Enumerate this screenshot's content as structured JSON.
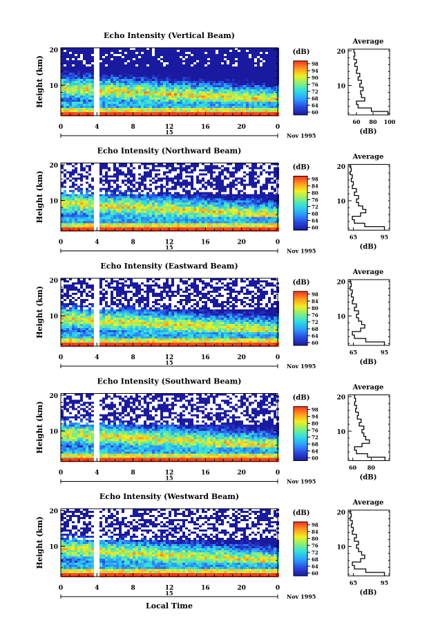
{
  "figure": {
    "xlabel": "Local Time",
    "date_label": "Nov 1995",
    "day_label": "15",
    "avg_title": "Average",
    "unit": "(dB)",
    "ylabel": "Height (km)"
  },
  "chart_data": [
    {
      "type": "heatmap",
      "title": "Echo Intensity (Vertical Beam)",
      "xlabel": "Local Time",
      "ylabel": "Height (km)",
      "x_ticks": [
        "0",
        "4",
        "8",
        "12",
        "16",
        "20",
        "0"
      ],
      "y_ticks": [
        "20",
        "10"
      ],
      "xlim": [
        0,
        24
      ],
      "ylim": [
        1.5,
        20.5
      ],
      "colorbar_label": "(dB)",
      "colorbar_ticks": [
        "98",
        "94",
        "90",
        "76",
        "72",
        "68",
        "64",
        "60"
      ],
      "profile": {
        "xlabel": "(dB)",
        "x_ticks": [
          "60",
          "80",
          "100"
        ],
        "xlim": [
          50,
          100
        ],
        "y_ticks": [
          "20",
          "10"
        ],
        "height_km": [
          2,
          3,
          4,
          5,
          6,
          7,
          8,
          9,
          10,
          11,
          12,
          13,
          14,
          15,
          16,
          17,
          18,
          19,
          20
        ],
        "echo_db": [
          98,
          78,
          62,
          60,
          70,
          66,
          65,
          68,
          64,
          66,
          62,
          64,
          60,
          61,
          58,
          60,
          57,
          58,
          57
        ]
      }
    },
    {
      "type": "heatmap",
      "title": "Echo Intensity (Northward Beam)",
      "xlabel": "Local Time",
      "ylabel": "Height (km)",
      "x_ticks": [
        "0",
        "4",
        "8",
        "12",
        "16",
        "20",
        "0"
      ],
      "y_ticks": [
        "20",
        "10"
      ],
      "xlim": [
        0,
        24
      ],
      "ylim": [
        1.5,
        20.5
      ],
      "colorbar_label": "(dB)",
      "colorbar_ticks": [
        "98",
        "84",
        "80",
        "76",
        "72",
        "68",
        "64",
        "60"
      ],
      "profile": {
        "xlabel": "(dB)",
        "x_ticks": [
          "65",
          "95"
        ],
        "xlim": [
          60,
          100
        ],
        "y_ticks": [
          "20",
          "10"
        ],
        "height_km": [
          2,
          3,
          4,
          5,
          6,
          7,
          8,
          9,
          10,
          11,
          12,
          13,
          14,
          15,
          16,
          17,
          18,
          19,
          20
        ],
        "echo_db": [
          95,
          76,
          66,
          64,
          72,
          77,
          74,
          70,
          68,
          70,
          66,
          68,
          64,
          65,
          63,
          64,
          62,
          63,
          62
        ]
      }
    },
    {
      "type": "heatmap",
      "title": "Echo Intensity (Eastward Beam)",
      "xlabel": "Local Time",
      "ylabel": "Height (km)",
      "x_ticks": [
        "0",
        "4",
        "8",
        "12",
        "16",
        "20",
        "0"
      ],
      "y_ticks": [
        "20",
        "10"
      ],
      "xlim": [
        0,
        24
      ],
      "ylim": [
        1.5,
        20.5
      ],
      "colorbar_label": "(dB)",
      "colorbar_ticks": [
        "98",
        "84",
        "80",
        "76",
        "72",
        "68",
        "64",
        "60"
      ],
      "profile": {
        "xlabel": "(dB)",
        "x_ticks": [
          "65",
          "95"
        ],
        "xlim": [
          60,
          100
        ],
        "y_ticks": [
          "20",
          "10"
        ],
        "height_km": [
          2,
          3,
          4,
          5,
          6,
          7,
          8,
          9,
          10,
          11,
          12,
          13,
          14,
          15,
          16,
          17,
          18,
          19,
          20
        ],
        "echo_db": [
          95,
          77,
          66,
          64,
          72,
          76,
          73,
          70,
          68,
          70,
          66,
          68,
          64,
          65,
          63,
          64,
          62,
          63,
          62
        ]
      }
    },
    {
      "type": "heatmap",
      "title": "Echo Intensity (Southward Beam)",
      "xlabel": "Local Time",
      "ylabel": "Height (km)",
      "x_ticks": [
        "0",
        "4",
        "8",
        "12",
        "16",
        "20",
        "0"
      ],
      "y_ticks": [
        "20",
        "10"
      ],
      "xlim": [
        0,
        24
      ],
      "ylim": [
        1.5,
        20.5
      ],
      "colorbar_label": "(dB)",
      "colorbar_ticks": [
        "98",
        "94",
        "80",
        "76",
        "72",
        "68",
        "64",
        "60"
      ],
      "profile": {
        "xlabel": "(dB)",
        "x_ticks": [
          "60",
          "80"
        ],
        "xlim": [
          55,
          100
        ],
        "y_ticks": [
          "20",
          "10"
        ],
        "height_km": [
          2,
          3,
          4,
          5,
          6,
          7,
          8,
          9,
          10,
          11,
          12,
          13,
          14,
          15,
          16,
          17,
          18,
          19,
          20
        ],
        "echo_db": [
          95,
          76,
          64,
          62,
          70,
          78,
          74,
          72,
          70,
          72,
          67,
          69,
          65,
          66,
          63,
          64,
          62,
          63,
          62
        ]
      }
    },
    {
      "type": "heatmap",
      "title": "Echo Intensity (Westward Beam)",
      "xlabel": "Local Time",
      "ylabel": "Height (km)",
      "x_ticks": [
        "0",
        "4",
        "8",
        "12",
        "16",
        "20",
        "0"
      ],
      "y_ticks": [
        "20",
        "10"
      ],
      "xlim": [
        0,
        24
      ],
      "ylim": [
        1.5,
        20.5
      ],
      "colorbar_label": "(dB)",
      "colorbar_ticks": [
        "98",
        "84",
        "80",
        "76",
        "72",
        "68",
        "64",
        "60"
      ],
      "profile": {
        "xlabel": "(dB)",
        "x_ticks": [
          "65",
          "95"
        ],
        "xlim": [
          60,
          100
        ],
        "y_ticks": [
          "20",
          "10"
        ],
        "height_km": [
          2,
          3,
          4,
          5,
          6,
          7,
          8,
          9,
          10,
          11,
          12,
          13,
          14,
          15,
          16,
          17,
          18,
          19,
          20
        ],
        "echo_db": [
          95,
          77,
          66,
          64,
          72,
          76,
          73,
          70,
          68,
          70,
          66,
          68,
          64,
          65,
          63,
          64,
          62,
          63,
          62
        ]
      }
    }
  ]
}
